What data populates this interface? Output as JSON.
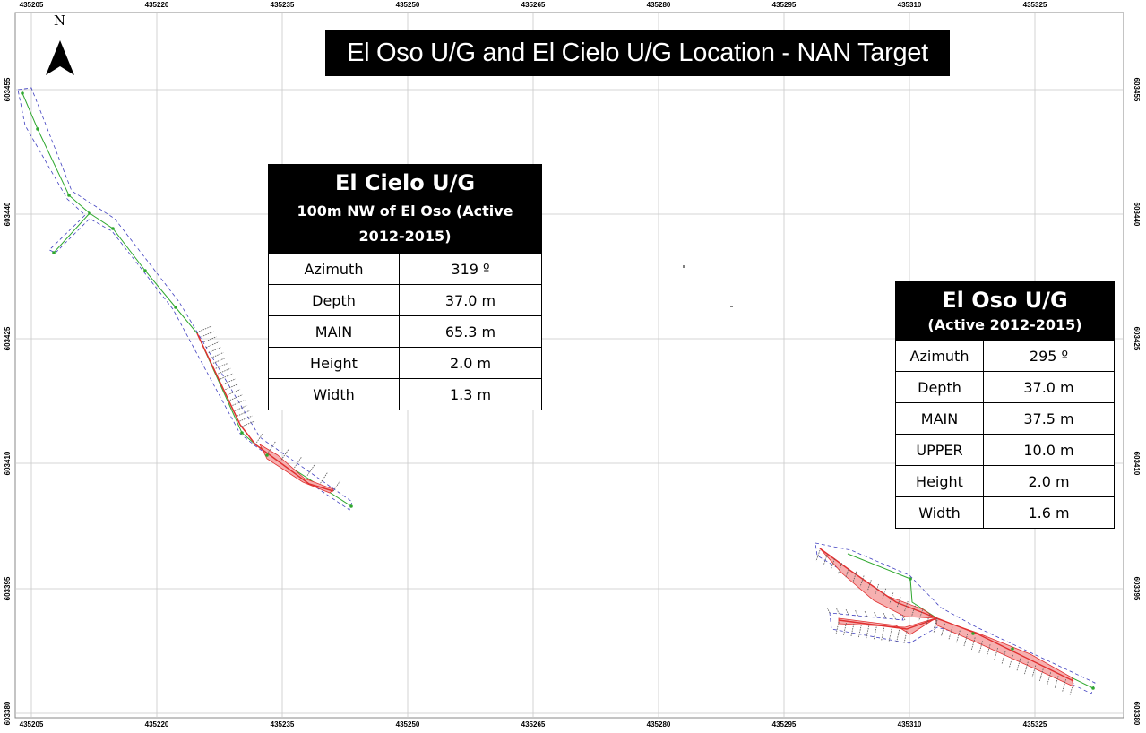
{
  "title": "El Oso U/G and El Cielo U/G Location - NAN Target",
  "north_label": "N",
  "grid": {
    "eastings": [
      "435205",
      "435220",
      "435235",
      "435250",
      "435265",
      "435280",
      "435295",
      "435310",
      "435325"
    ],
    "northings_left": [
      "603455",
      "603440",
      "603425",
      "603410",
      "603395",
      "603380"
    ],
    "northings_right": [
      "603455",
      "603440",
      "603425",
      "603410",
      "603395",
      "603380"
    ],
    "grid_color": "#c8c8c8"
  },
  "cielo": {
    "title": "El Cielo U/G",
    "subtitle": "100m NW of El Oso (Active 2012-2015)",
    "rows": [
      {
        "label": "Azimuth",
        "value": "319 º"
      },
      {
        "label": "Depth",
        "value": "37.0 m"
      },
      {
        "label": "MAIN",
        "value": "65.3 m"
      },
      {
        "label": "Height",
        "value": "2.0 m"
      },
      {
        "label": "Width",
        "value": "1.3 m"
      }
    ]
  },
  "oso": {
    "title": "El Oso U/G",
    "subtitle": "(Active 2012-2015)",
    "rows": [
      {
        "label": "Azimuth",
        "value": "295 º"
      },
      {
        "label": "Depth",
        "value": "37.0 m"
      },
      {
        "label": "MAIN",
        "value": "37.5 m"
      },
      {
        "label": "UPPER",
        "value": "10.0 m"
      },
      {
        "label": "Height",
        "value": "2.0 m"
      },
      {
        "label": "Width",
        "value": "1.6 m"
      }
    ]
  },
  "colors": {
    "survey_line": "#2fa82f",
    "outline": "#4040c0",
    "sampled": "#e03030",
    "sampled_fill": "#f6b0b0"
  }
}
